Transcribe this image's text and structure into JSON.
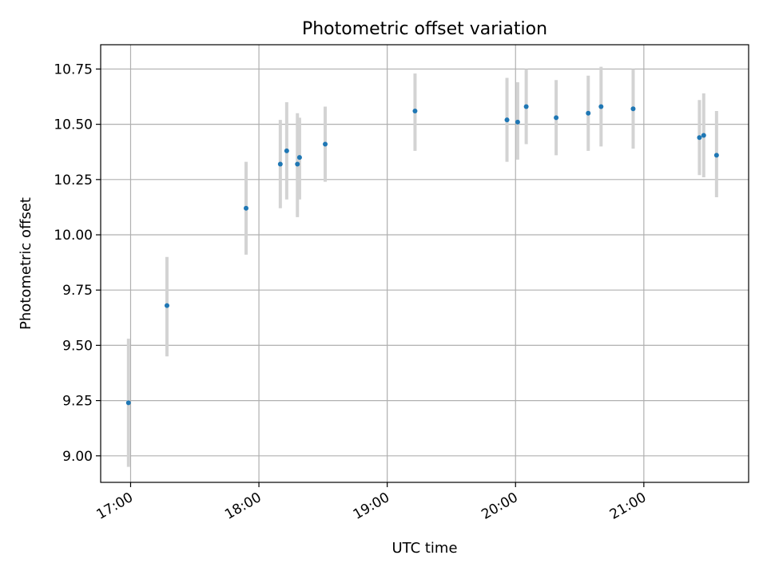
{
  "chart_data": {
    "type": "scatter",
    "title": "Photometric offset variation",
    "xlabel": "UTC time",
    "ylabel": "Photometric offset",
    "x_ticks": [
      "17:00",
      "18:00",
      "19:00",
      "20:00",
      "21:00"
    ],
    "y_ticks": [
      "9.00",
      "9.25",
      "9.50",
      "9.75",
      "10.00",
      "10.25",
      "10.50",
      "10.75"
    ],
    "xlim": [
      "16:46",
      "21:49"
    ],
    "ylim": [
      8.88,
      10.86
    ],
    "grid": true,
    "colors": {
      "point": "#1f77b4",
      "errorbar": "#d3d3d3",
      "grid": "#b0b0b0"
    },
    "points": [
      {
        "x": "16:59",
        "y": 9.24,
        "yerr_low": 8.95,
        "yerr_high": 9.53
      },
      {
        "x": "17:17",
        "y": 9.68,
        "yerr_low": 9.45,
        "yerr_high": 9.9
      },
      {
        "x": "17:54",
        "y": 10.12,
        "yerr_low": 9.91,
        "yerr_high": 10.33
      },
      {
        "x": "18:10",
        "y": 10.32,
        "yerr_low": 10.12,
        "yerr_high": 10.52
      },
      {
        "x": "18:13",
        "y": 10.38,
        "yerr_low": 10.16,
        "yerr_high": 10.6
      },
      {
        "x": "18:18",
        "y": 10.32,
        "yerr_low": 10.08,
        "yerr_high": 10.55
      },
      {
        "x": "18:19",
        "y": 10.35,
        "yerr_low": 10.16,
        "yerr_high": 10.53
      },
      {
        "x": "18:31",
        "y": 10.41,
        "yerr_low": 10.24,
        "yerr_high": 10.58
      },
      {
        "x": "19:13",
        "y": 10.56,
        "yerr_low": 10.38,
        "yerr_high": 10.73
      },
      {
        "x": "19:56",
        "y": 10.52,
        "yerr_low": 10.33,
        "yerr_high": 10.71
      },
      {
        "x": "20:01",
        "y": 10.51,
        "yerr_low": 10.34,
        "yerr_high": 10.69
      },
      {
        "x": "20:05",
        "y": 10.58,
        "yerr_low": 10.41,
        "yerr_high": 10.75
      },
      {
        "x": "20:19",
        "y": 10.53,
        "yerr_low": 10.36,
        "yerr_high": 10.7
      },
      {
        "x": "20:34",
        "y": 10.55,
        "yerr_low": 10.38,
        "yerr_high": 10.72
      },
      {
        "x": "20:40",
        "y": 10.58,
        "yerr_low": 10.4,
        "yerr_high": 10.76
      },
      {
        "x": "20:55",
        "y": 10.57,
        "yerr_low": 10.39,
        "yerr_high": 10.75
      },
      {
        "x": "21:26",
        "y": 10.44,
        "yerr_low": 10.27,
        "yerr_high": 10.61
      },
      {
        "x": "21:28",
        "y": 10.45,
        "yerr_low": 10.26,
        "yerr_high": 10.64
      },
      {
        "x": "21:34",
        "y": 10.36,
        "yerr_low": 10.17,
        "yerr_high": 10.56
      }
    ]
  }
}
